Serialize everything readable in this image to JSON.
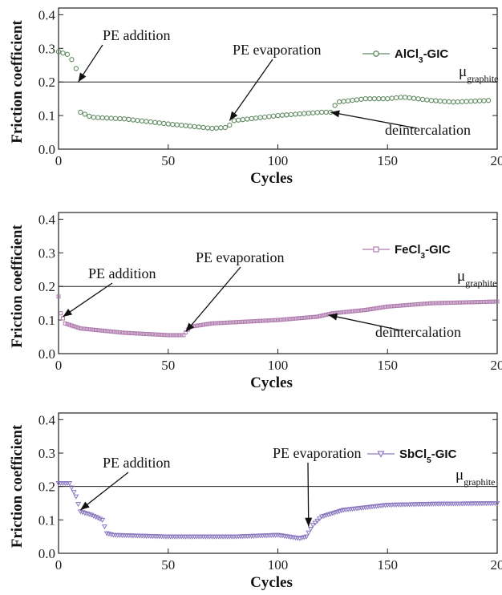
{
  "chart_data": [
    {
      "type": "scatter",
      "ylabel": "Friction coefficient",
      "xlabel": "Cycles",
      "xlim": [
        0,
        200
      ],
      "ylim": [
        0,
        0.42
      ],
      "x_ticks": [
        "0",
        "50",
        "100",
        "150",
        "20"
      ],
      "y_ticks": [
        "0.0",
        "0.1",
        "0.2",
        "0.3",
        "0.4"
      ],
      "reference": {
        "y": 0.2,
        "symbol": "μ",
        "subscript": "graphite"
      },
      "legend": {
        "label_pre": "AlCl",
        "label_sub": "3",
        "label_post": "-GIC",
        "marker": "circle",
        "position": "top-right"
      },
      "color": "#5f8a60",
      "series": [
        {
          "x": [
            0,
            5,
            8,
            9,
            10,
            15,
            30,
            50,
            70,
            77,
            80,
            100,
            120,
            124,
            127,
            140,
            150,
            157,
            170,
            180,
            196
          ],
          "y": [
            0.29,
            0.28,
            0.24,
            0.2,
            0.11,
            0.095,
            0.09,
            0.075,
            0.062,
            0.065,
            0.085,
            0.1,
            0.11,
            0.11,
            0.14,
            0.15,
            0.15,
            0.155,
            0.145,
            0.14,
            0.145
          ]
        }
      ],
      "annotations": [
        {
          "text": "PE addition",
          "x": 9,
          "y": 0.2
        },
        {
          "text": "PE evaporation",
          "x": 78,
          "y": 0.085
        },
        {
          "text": "deintercalation",
          "x": 124,
          "y": 0.11
        }
      ]
    },
    {
      "type": "scatter",
      "ylabel": "Friction coefficient",
      "xlabel": "Cycles",
      "xlim": [
        0,
        200
      ],
      "ylim": [
        0,
        0.42
      ],
      "x_ticks": [
        "0",
        "50",
        "100",
        "150",
        "20"
      ],
      "y_ticks": [
        "0.0",
        "0.1",
        "0.2",
        "0.3",
        "0.4"
      ],
      "reference": {
        "y": 0.2,
        "symbol": "μ",
        "subscript": "graphite"
      },
      "legend": {
        "label_pre": "FeCl",
        "label_sub": "3",
        "label_post": "-GIC",
        "marker": "square",
        "position": "top-right"
      },
      "color": "#b07cae",
      "series": [
        {
          "x": [
            0,
            1,
            3,
            10,
            30,
            50,
            57,
            60,
            70,
            100,
            118,
            125,
            140,
            150,
            160,
            170,
            200
          ],
          "y": [
            0.17,
            0.12,
            0.09,
            0.075,
            0.062,
            0.055,
            0.055,
            0.08,
            0.09,
            0.1,
            0.11,
            0.12,
            0.13,
            0.14,
            0.145,
            0.15,
            0.155
          ]
        }
      ],
      "annotations": [
        {
          "text": "PE addition",
          "x": 2,
          "y": 0.11
        },
        {
          "text": "PE evaporation",
          "x": 58,
          "y": 0.065
        },
        {
          "text": "deintercalation",
          "x": 123,
          "y": 0.115
        }
      ]
    },
    {
      "type": "scatter",
      "ylabel": "Friction coefficient",
      "xlabel": "Cycles",
      "xlim": [
        0,
        200
      ],
      "ylim": [
        0,
        0.42
      ],
      "x_ticks": [
        "0",
        "50",
        "100",
        "150",
        "20"
      ],
      "y_ticks": [
        "0.0",
        "0.1",
        "0.2",
        "0.3",
        "0.4"
      ],
      "reference": {
        "y": 0.2,
        "symbol": "μ",
        "subscript": "graphite"
      },
      "legend": {
        "label_pre": "SbCl",
        "label_sub": "5",
        "label_post": "-GIC",
        "marker": "triangle-down",
        "position": "top-right"
      },
      "color": "#8a78c0",
      "series": [
        {
          "x": [
            0,
            5,
            8,
            10,
            15,
            20,
            22,
            25,
            50,
            80,
            100,
            110,
            113,
            116,
            120,
            130,
            150,
            170,
            200
          ],
          "y": [
            0.21,
            0.21,
            0.17,
            0.125,
            0.115,
            0.1,
            0.06,
            0.055,
            0.05,
            0.05,
            0.055,
            0.045,
            0.05,
            0.085,
            0.11,
            0.13,
            0.145,
            0.148,
            0.15
          ]
        }
      ],
      "annotations": [
        {
          "text": "PE addition",
          "x": 10,
          "y": 0.13
        },
        {
          "text": "PE evaporation",
          "x": 114,
          "y": 0.08
        }
      ]
    }
  ]
}
